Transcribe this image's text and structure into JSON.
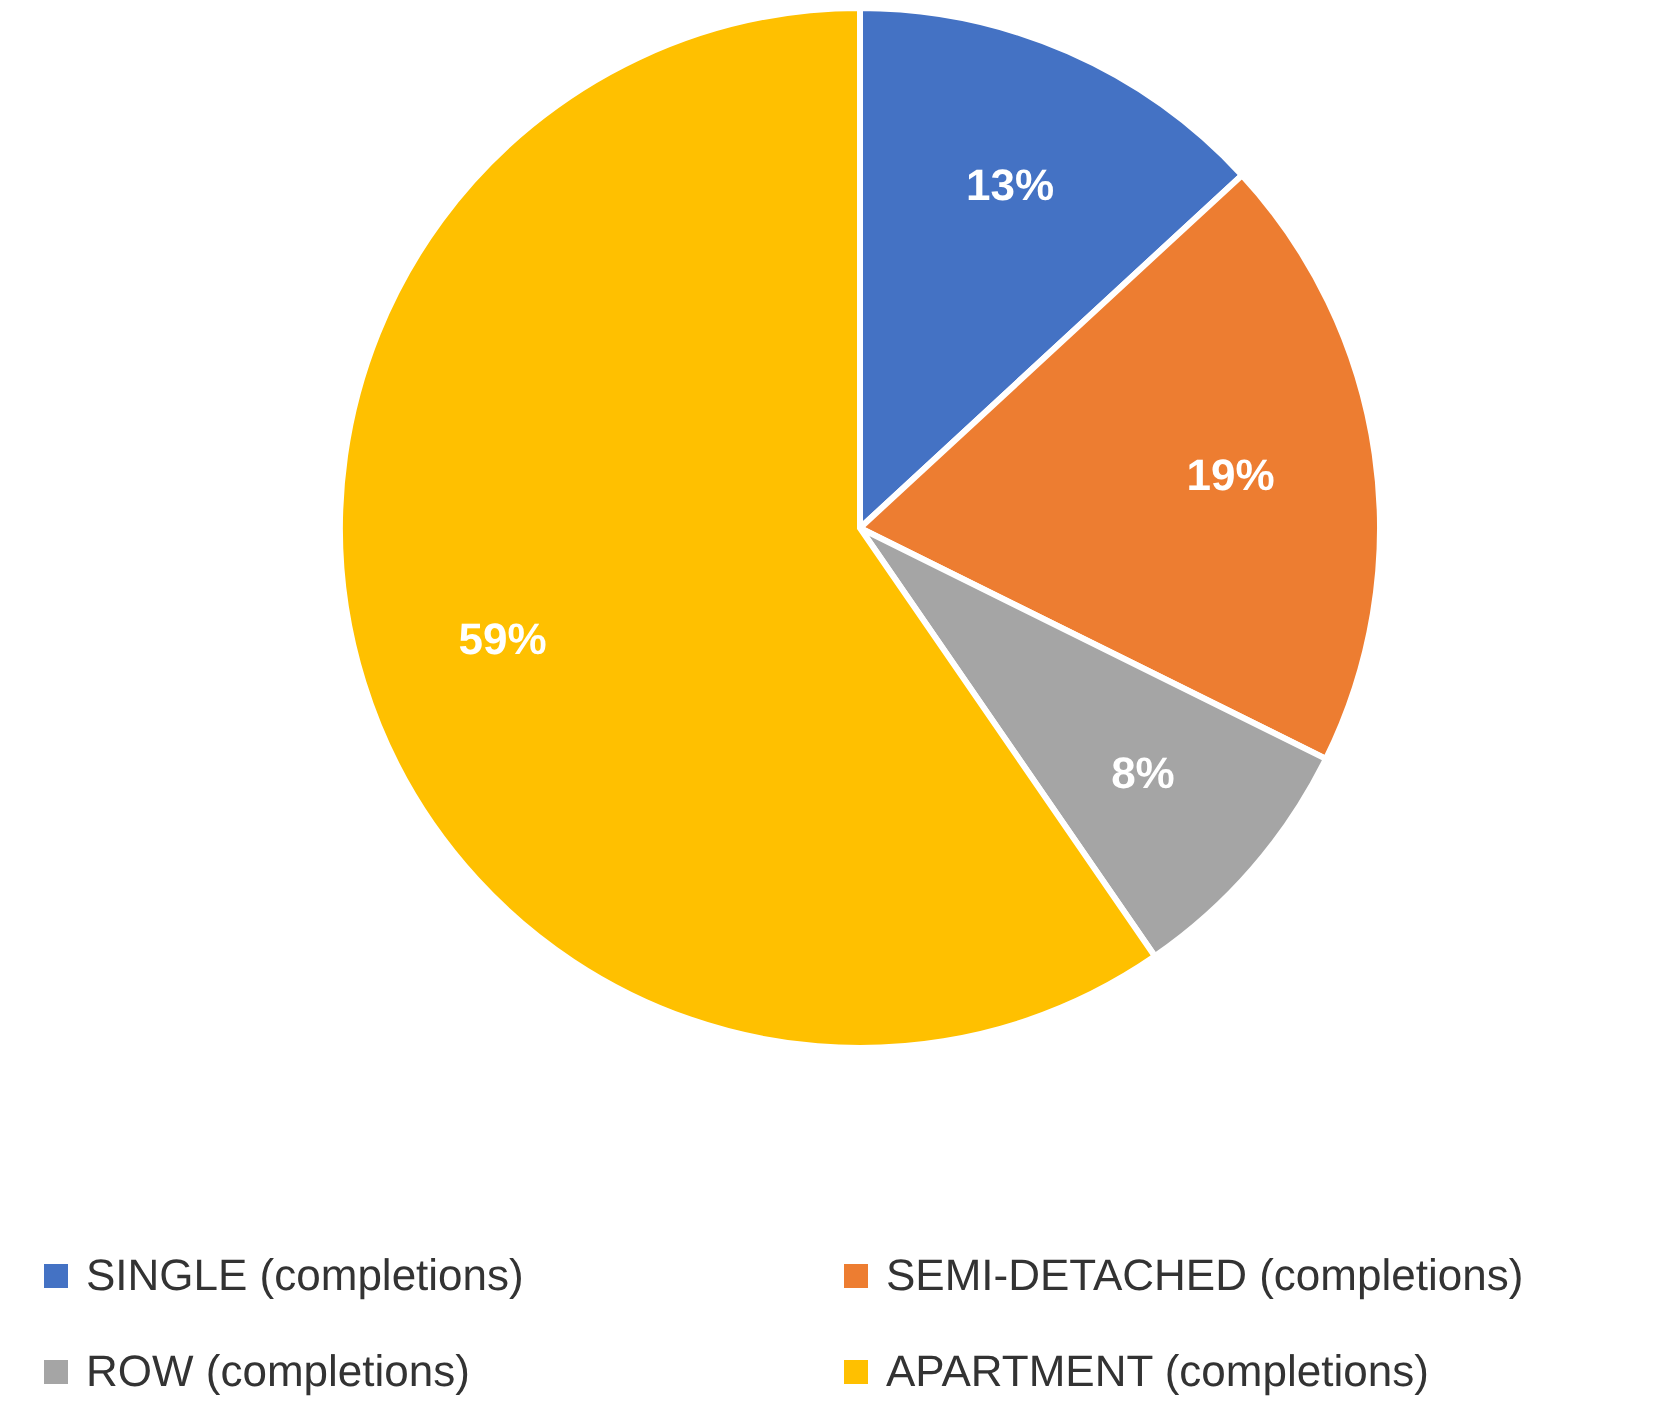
{
  "chart_data": {
    "type": "pie",
    "categories": [
      "SINGLE (completions)",
      "SEMI-DETACHED (completions)",
      "ROW (completions)",
      "APARTMENT (completions)"
    ],
    "values": [
      13,
      19,
      8,
      59
    ],
    "colors": [
      "#4472c4",
      "#ed7d31",
      "#a5a5a5",
      "#ffc000"
    ],
    "value_labels": [
      "13%",
      "19%",
      "8%",
      "59%"
    ],
    "legend": "bottom"
  }
}
